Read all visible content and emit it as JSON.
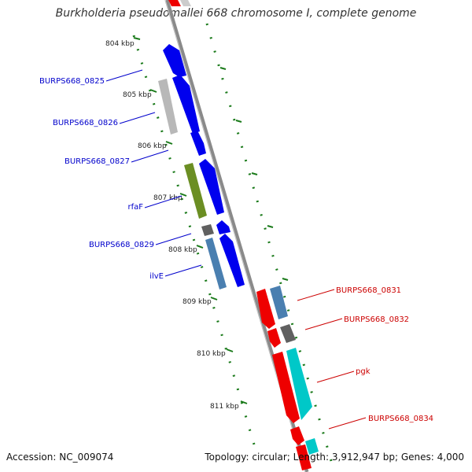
{
  "title": "Burkholderia pseudomallei 668 chromosome I, complete genome",
  "footer": {
    "accession": "Accession: NC_009074",
    "summary": "Topology: circular; Length: 3,912,947 bp; Genes: 4,000"
  },
  "ticks": [
    "804 kbp",
    "805 kbp",
    "806 kbp",
    "807 kbp",
    "808 kbp",
    "809 kbp",
    "810 kbp",
    "811 kbp"
  ],
  "left_gene_labels": [
    "BURPS668_0825",
    "BURPS668_0826",
    "BURPS668_0827",
    "rfaF",
    "BURPS668_0829",
    "ilvE"
  ],
  "right_gene_labels": [
    "BURPS668_0831",
    "BURPS668_0832",
    "pgk",
    "BURPS668_0834"
  ],
  "colors": {
    "forward_cds": "#0000ee",
    "reverse_cds": "#ee0000",
    "backbone": "#8a8a8a",
    "tick": "#1a7a1a",
    "left_label": "#0000cc",
    "right_label": "#cc0000",
    "grey_feature": "#b8b8b8",
    "olive_feature": "#6b8e23",
    "steel_feature": "#4a7fb0",
    "cyan_feature": "#00c8c8",
    "dark_feature": "#606060"
  }
}
